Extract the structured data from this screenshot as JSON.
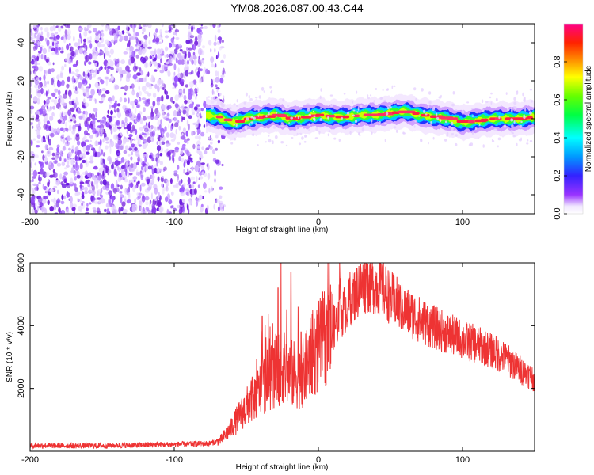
{
  "title": "YM08.2026.087.00.43.C44",
  "chart_data": [
    {
      "type": "heatmap",
      "name": "spectrogram",
      "xlabel": "Height of straight line (km)",
      "ylabel": "Frequency (Hz)",
      "xlim": [
        -200,
        150
      ],
      "ylim": [
        -50,
        50
      ],
      "xticks": [
        -200,
        -100,
        0,
        100
      ],
      "yticks": [
        -40,
        -20,
        0,
        20,
        40
      ],
      "noise_region_km": [
        -200,
        -65
      ],
      "signal_start_km": -78,
      "signal_center_hz": [
        [
          -78,
          2
        ],
        [
          -70,
          1
        ],
        [
          -60,
          -2
        ],
        [
          -50,
          0
        ],
        [
          -40,
          1
        ],
        [
          -30,
          2
        ],
        [
          -20,
          0
        ],
        [
          -10,
          1
        ],
        [
          0,
          2
        ],
        [
          10,
          1
        ],
        [
          20,
          1
        ],
        [
          30,
          2
        ],
        [
          40,
          2
        ],
        [
          50,
          3
        ],
        [
          60,
          4
        ],
        [
          70,
          2
        ],
        [
          80,
          1
        ],
        [
          90,
          0
        ],
        [
          100,
          -2
        ],
        [
          110,
          -1
        ],
        [
          120,
          0
        ],
        [
          130,
          0
        ],
        [
          140,
          0
        ],
        [
          150,
          1
        ]
      ],
      "colorbar": {
        "label": "Normalized spectral amplitude",
        "ticks": [
          "0.0",
          "0.2",
          "0.4",
          "0.6",
          "0.8"
        ],
        "range": [
          0,
          1
        ]
      }
    },
    {
      "type": "line",
      "name": "snr",
      "xlabel": "Height of straight line (km)",
      "ylabel": "SNR (10 * v/v)",
      "xlim": [
        -200,
        150
      ],
      "ylim": [
        0,
        6000
      ],
      "xticks": [
        -200,
        -100,
        0,
        100
      ],
      "yticks": [
        2000,
        4000,
        6000
      ],
      "color": "#ee3333",
      "envelope": [
        [
          -200,
          180
        ],
        [
          -150,
          180
        ],
        [
          -100,
          220
        ],
        [
          -75,
          250
        ],
        [
          -68,
          350
        ],
        [
          -62,
          650
        ],
        [
          -55,
          1100
        ],
        [
          -50,
          1400
        ],
        [
          -45,
          1700
        ],
        [
          -40,
          2000
        ],
        [
          -35,
          2300
        ],
        [
          -30,
          2500
        ],
        [
          -25,
          2700
        ],
        [
          -20,
          2500
        ],
        [
          -15,
          2400
        ],
        [
          -10,
          2500
        ],
        [
          -5,
          3000
        ],
        [
          0,
          3300
        ],
        [
          5,
          3700
        ],
        [
          10,
          3900
        ],
        [
          15,
          4300
        ],
        [
          20,
          4650
        ],
        [
          25,
          5000
        ],
        [
          30,
          5250
        ],
        [
          35,
          5350
        ],
        [
          40,
          5300
        ],
        [
          45,
          5150
        ],
        [
          50,
          4900
        ],
        [
          55,
          4700
        ],
        [
          60,
          4500
        ],
        [
          70,
          4200
        ],
        [
          80,
          3950
        ],
        [
          90,
          3750
        ],
        [
          100,
          3550
        ],
        [
          110,
          3400
        ],
        [
          120,
          3200
        ],
        [
          130,
          2950
        ],
        [
          140,
          2600
        ],
        [
          150,
          2300
        ]
      ],
      "spikes": [
        [
          -39,
          4300
        ],
        [
          -37,
          4000
        ],
        [
          -28,
          5200
        ],
        [
          -26,
          6000
        ],
        [
          -22,
          5400
        ],
        [
          -19,
          5700
        ],
        [
          -14,
          4600
        ],
        [
          -12,
          3800
        ],
        [
          -8,
          3400
        ],
        [
          -4,
          4500
        ],
        [
          8,
          4800
        ],
        [
          15,
          5500
        ],
        [
          22,
          5700
        ],
        [
          28,
          5900
        ],
        [
          33,
          6000
        ]
      ]
    }
  ]
}
